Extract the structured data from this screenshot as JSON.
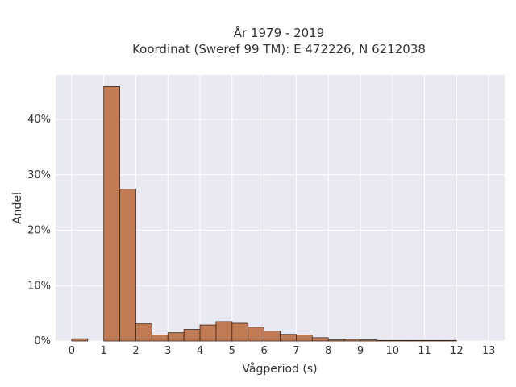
{
  "chart_data": {
    "type": "bar",
    "title_line1": "År 1979 - 2019",
    "title_line2": "Koordinat (Sweref 99 TM): E 472226, N 6212038",
    "xlabel": "Vågperiod (s)",
    "ylabel": "Andel",
    "xlim": [
      -0.5,
      13.5
    ],
    "ylim": [
      0,
      0.48
    ],
    "xticks": [
      0,
      1,
      2,
      3,
      4,
      5,
      6,
      7,
      8,
      9,
      10,
      11,
      12,
      13
    ],
    "xtick_labels": [
      "0",
      "1",
      "2",
      "3",
      "4",
      "5",
      "6",
      "7",
      "8",
      "9",
      "10",
      "11",
      "12",
      "13"
    ],
    "yticks": [
      0,
      0.1,
      0.2,
      0.3,
      0.4
    ],
    "ytick_labels": [
      "0%",
      "10%",
      "20%",
      "30%",
      "40%"
    ],
    "bin_width": 0.5,
    "bins": [
      {
        "x0": 0.0,
        "value": 0.004
      },
      {
        "x0": 0.5,
        "value": 0.0
      },
      {
        "x0": 1.0,
        "value": 0.459
      },
      {
        "x0": 1.5,
        "value": 0.274
      },
      {
        "x0": 2.0,
        "value": 0.031
      },
      {
        "x0": 2.5,
        "value": 0.011
      },
      {
        "x0": 3.0,
        "value": 0.015
      },
      {
        "x0": 3.5,
        "value": 0.021
      },
      {
        "x0": 4.0,
        "value": 0.029
      },
      {
        "x0": 4.5,
        "value": 0.035
      },
      {
        "x0": 5.0,
        "value": 0.032
      },
      {
        "x0": 5.5,
        "value": 0.025
      },
      {
        "x0": 6.0,
        "value": 0.018
      },
      {
        "x0": 6.5,
        "value": 0.012
      },
      {
        "x0": 7.0,
        "value": 0.011
      },
      {
        "x0": 7.5,
        "value": 0.006
      },
      {
        "x0": 8.0,
        "value": 0.002
      },
      {
        "x0": 8.5,
        "value": 0.003
      },
      {
        "x0": 9.0,
        "value": 0.002
      },
      {
        "x0": 9.5,
        "value": 0.001
      },
      {
        "x0": 10.0,
        "value": 0.001
      },
      {
        "x0": 10.5,
        "value": 0.001
      },
      {
        "x0": 11.0,
        "value": 0.001
      },
      {
        "x0": 11.5,
        "value": 0.001
      }
    ],
    "bar_color": "#c07a54",
    "bar_edge_color": "#3a2418",
    "background_color": "#e9e9f1",
    "grid": true,
    "grid_color": "#ffffff"
  }
}
